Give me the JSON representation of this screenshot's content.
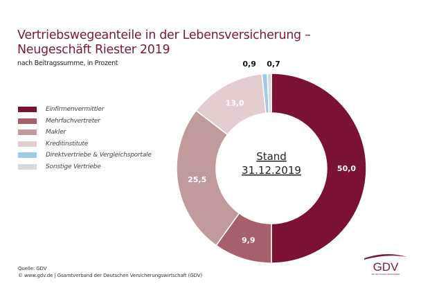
{
  "title_line1": "Vertriebswegeanteile in der Lebensversicherung –",
  "title_line2": "Neugeschäft Riester 2019",
  "subtitle": "nach Beitragssumme, in Prozent",
  "center_label_line1": "Stand",
  "center_label_line2": "31.12.2019",
  "source_line1": "Quelle: GDV",
  "source_line2": "© www.gdv.de | Gsamtverband der Deutschen Versicherungswirtschaft (GDV)",
  "logo": {
    "text": "GDV",
    "tagline": "DIE DEUTSCHEN VERSICHERER"
  },
  "chart_data": {
    "type": "pie",
    "variant": "donut",
    "title": "Vertriebswegeanteile in der Lebensversicherung – Neugeschäft Riester 2019",
    "subtitle": "nach Beitragssumme, in Prozent",
    "unit": "%",
    "legend_position": "left",
    "categories": [
      "Einfirmenvermittler",
      "Mehrfachvertreter",
      "Makler",
      "Kreditinstitute",
      "Direktvertriebe & Vergleichsportale",
      "Sonstige Vertriebe"
    ],
    "values": [
      50.0,
      9.9,
      25.5,
      13.0,
      0.9,
      0.7
    ],
    "labels": [
      "50,0",
      "9,9",
      "25,5",
      "13,0",
      "0,9",
      "0,7"
    ],
    "colors": [
      "#7b1232",
      "#a5606b",
      "#c19a9c",
      "#e4cdcf",
      "#9fcbe6",
      "#d9d9d9"
    ],
    "label_outside": [
      false,
      false,
      false,
      false,
      true,
      true
    ],
    "start_angle_deg": 0,
    "direction": "clockwise"
  }
}
